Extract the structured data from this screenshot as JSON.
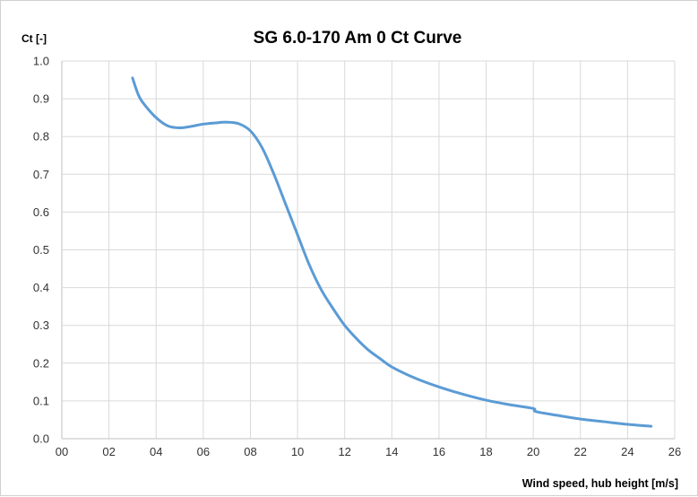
{
  "chart_data": {
    "type": "line",
    "title": "SG 6.0-170 Am 0 Ct Curve",
    "ylabel": "Ct [-]",
    "xlabel": "Wind speed, hub height [m/s]",
    "xlim": [
      0,
      26
    ],
    "ylim": [
      0,
      1.0
    ],
    "x_ticks": [
      "00",
      "02",
      "04",
      "06",
      "08",
      "10",
      "12",
      "14",
      "16",
      "18",
      "20",
      "22",
      "24",
      "26"
    ],
    "y_ticks": [
      "0.0",
      "0.1",
      "0.2",
      "0.3",
      "0.4",
      "0.5",
      "0.6",
      "0.7",
      "0.8",
      "0.9",
      "1.0"
    ],
    "grid": true,
    "legend": "none",
    "series_color": "#5b9bd5",
    "series": [
      {
        "x": [
          3.0,
          3.25,
          3.5,
          4.0,
          4.5,
          5.0,
          5.5,
          6.0,
          6.5,
          7.0,
          7.5,
          8.0,
          8.5,
          9.0,
          9.5,
          10.0,
          10.5,
          11.0,
          11.5,
          12.0,
          12.5,
          13.0,
          13.5,
          14.0,
          15.0,
          16.0,
          17.0,
          18.0,
          19.0,
          20.0,
          20.1,
          21.0,
          22.0,
          23.0,
          24.0,
          25.0
        ],
        "y": [
          0.955,
          0.91,
          0.885,
          0.85,
          0.828,
          0.823,
          0.827,
          0.833,
          0.836,
          0.838,
          0.834,
          0.815,
          0.77,
          0.7,
          0.62,
          0.54,
          0.46,
          0.395,
          0.345,
          0.3,
          0.265,
          0.235,
          0.212,
          0.19,
          0.16,
          0.137,
          0.118,
          0.102,
          0.09,
          0.08,
          0.072,
          0.062,
          0.052,
          0.045,
          0.038,
          0.033
        ]
      }
    ]
  }
}
